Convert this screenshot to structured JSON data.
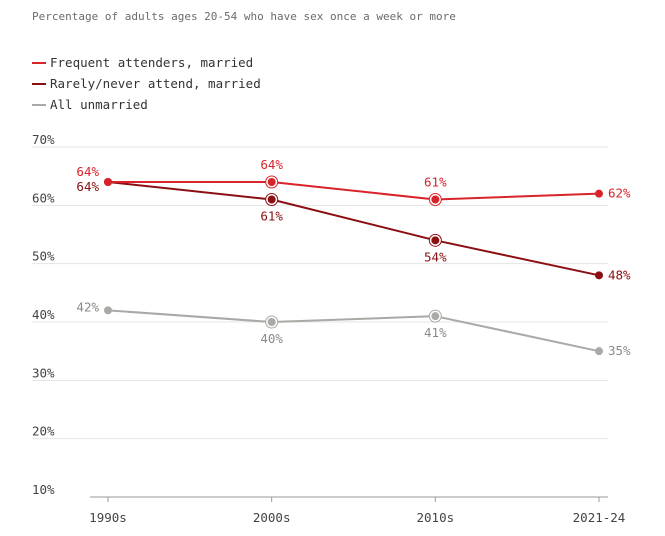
{
  "chart_data": {
    "type": "line",
    "subtitle": "Percentage of adults ages 20-54 who have sex once a week or more",
    "categories": [
      "1990s",
      "2000s",
      "2010s",
      "2021-24"
    ],
    "ylim": [
      10,
      70
    ],
    "yticks": [
      "70%",
      "60%",
      "50%",
      "40%",
      "30%",
      "20%",
      "10%"
    ],
    "ytick_values": [
      70,
      60,
      50,
      40,
      30,
      20,
      10
    ],
    "grid": true,
    "legend_position": "top-left",
    "series": [
      {
        "name": "Frequent attenders, married",
        "color": "#d9232a",
        "values": [
          64,
          64,
          61,
          62
        ],
        "labels": [
          "64%",
          "64%",
          "61%",
          "62%"
        ],
        "label_positions": [
          "left-above",
          "above",
          "above",
          "right"
        ]
      },
      {
        "name": "Rarely/never attend, married",
        "color": "#8b0f12",
        "values": [
          64,
          61,
          54,
          48
        ],
        "labels": [
          "64%",
          "61%",
          "54%",
          "48%"
        ],
        "label_positions": [
          "left-below",
          "below",
          "below",
          "right"
        ]
      },
      {
        "name": "All unmarried",
        "color": "#a9a9a5",
        "values": [
          42,
          40,
          41,
          35
        ],
        "labels": [
          "42%",
          "40%",
          "41%",
          "35%"
        ],
        "label_positions": [
          "left",
          "below",
          "below",
          "right"
        ]
      }
    ]
  }
}
